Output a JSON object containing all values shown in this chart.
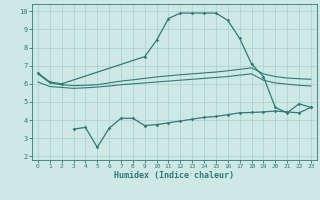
{
  "xlabel": "Humidex (Indice chaleur)",
  "ylabel": "",
  "background_color": "#cde8e5",
  "grid_color": "#afd4d0",
  "line_color": "#2e7d74",
  "xlim": [
    -0.5,
    23.5
  ],
  "ylim": [
    1.8,
    10.4
  ],
  "xticks": [
    0,
    1,
    2,
    3,
    4,
    5,
    6,
    7,
    8,
    9,
    10,
    11,
    12,
    13,
    14,
    15,
    16,
    17,
    18,
    19,
    20,
    21,
    22,
    23
  ],
  "yticks": [
    2,
    3,
    4,
    5,
    6,
    7,
    8,
    9,
    10
  ],
  "curve_top": {
    "x": [
      0,
      1,
      2,
      9,
      10,
      11,
      12,
      13,
      14,
      15,
      16,
      17,
      18,
      19,
      20,
      21,
      22,
      23
    ],
    "y": [
      6.6,
      6.1,
      6.0,
      7.5,
      8.4,
      9.6,
      9.9,
      9.9,
      9.9,
      9.9,
      9.5,
      8.5,
      7.1,
      6.4,
      4.7,
      4.4,
      4.9,
      4.7
    ]
  },
  "curve_mid_upper": {
    "x": [
      0,
      1,
      2,
      3,
      4,
      5,
      6,
      7,
      8,
      9,
      10,
      11,
      12,
      13,
      14,
      15,
      16,
      17,
      18,
      19,
      20,
      21,
      22,
      23
    ],
    "y": [
      6.55,
      6.05,
      5.95,
      5.9,
      5.92,
      5.95,
      6.05,
      6.15,
      6.22,
      6.3,
      6.38,
      6.44,
      6.5,
      6.55,
      6.6,
      6.65,
      6.72,
      6.8,
      6.88,
      6.55,
      6.4,
      6.32,
      6.28,
      6.25
    ]
  },
  "curve_mid_lower": {
    "x": [
      0,
      1,
      2,
      3,
      4,
      5,
      6,
      7,
      8,
      9,
      10,
      11,
      12,
      13,
      14,
      15,
      16,
      17,
      18,
      19,
      20,
      21,
      22,
      23
    ],
    "y": [
      6.1,
      5.85,
      5.8,
      5.75,
      5.78,
      5.82,
      5.88,
      5.95,
      6.0,
      6.05,
      6.1,
      6.15,
      6.2,
      6.25,
      6.3,
      6.35,
      6.4,
      6.48,
      6.55,
      6.2,
      6.05,
      5.98,
      5.92,
      5.88
    ]
  },
  "curve_bot": {
    "x": [
      3,
      4,
      5,
      6,
      7,
      8,
      9,
      10,
      11,
      12,
      13,
      14,
      15,
      16,
      17,
      18,
      19,
      20,
      21,
      22,
      23
    ],
    "y": [
      3.5,
      3.6,
      2.5,
      3.55,
      4.1,
      4.1,
      3.7,
      3.75,
      3.85,
      3.95,
      4.05,
      4.15,
      4.2,
      4.3,
      4.4,
      4.42,
      4.45,
      4.5,
      4.45,
      4.4,
      4.7
    ]
  }
}
